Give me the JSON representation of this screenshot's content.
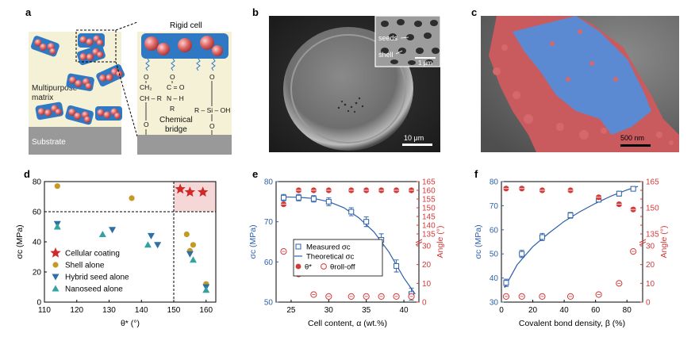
{
  "panels": {
    "a": {
      "label": "a",
      "texts": {
        "rigid_cell": "Rigid cell",
        "matrix": [
          "Multipurpose",
          "matrix"
        ],
        "substrate": "Substrate",
        "bridge": [
          "Chemical",
          "bridge"
        ],
        "chem": {
          "ch2": "CH₂",
          "ch": "CH – R",
          "co": "C = O",
          "nh": "N – H",
          "r": "R",
          "o": "O",
          "si": "R – Si – OH"
        }
      }
    },
    "b": {
      "label": "b",
      "inset_labels": [
        "seeds",
        "shell"
      ],
      "inset_scale": "1 μm",
      "scale": "10 μm"
    },
    "c": {
      "label": "c",
      "scale": "500 nm",
      "colors": {
        "red": "#d05a5e",
        "blue": "#5b8ad2"
      }
    },
    "d": {
      "label": "d"
    },
    "e": {
      "label": "e"
    },
    "f": {
      "label": "f"
    }
  },
  "chart_data": [
    {
      "panel": "d",
      "type": "scatter",
      "xlabel": "θ* (°)",
      "ylabel": "σc (MPa)",
      "xlim": [
        110,
        163
      ],
      "ylim": [
        0,
        80
      ],
      "xticks": [
        "110",
        "120",
        "130",
        "140",
        "150",
        "160"
      ],
      "yticks": [
        "0",
        "20",
        "40",
        "60",
        "80"
      ],
      "threshold_lines": {
        "x": 150,
        "y": 60
      },
      "shaded_region": {
        "x": [
          150,
          163
        ],
        "y": [
          60,
          80
        ]
      },
      "legend_placement": "bottom-left",
      "series": [
        {
          "name": "Cellular coating",
          "marker": "star",
          "color": "#cf2a2a",
          "points": [
            [
              152,
              75
            ],
            [
              155,
              73
            ],
            [
              159,
              73
            ]
          ]
        },
        {
          "name": "Shell alone",
          "marker": "circle",
          "color": "#c49a24",
          "points": [
            [
              114,
              77
            ],
            [
              137,
              69
            ],
            [
              154,
              45
            ],
            [
              156,
              38
            ],
            [
              155,
              34
            ],
            [
              160,
              12
            ]
          ]
        },
        {
          "name": "Hybrid seed alone",
          "marker": "triangle-down",
          "color": "#2f6fa3",
          "points": [
            [
              114,
              52
            ],
            [
              131,
              48
            ],
            [
              143,
              44
            ],
            [
              145,
              38
            ],
            [
              155,
              32
            ],
            [
              160,
              10
            ]
          ]
        },
        {
          "name": "Nanoseed alone",
          "marker": "triangle-up",
          "color": "#33a3a0",
          "points": [
            [
              114,
              50
            ],
            [
              128,
              45
            ],
            [
              142,
              38
            ],
            [
              156,
              28
            ],
            [
              160,
              8
            ]
          ]
        }
      ]
    },
    {
      "panel": "e",
      "type": "line",
      "xlabel": "Cell content, α (wt.%)",
      "ylabel_left": "σc (MPa)",
      "ylabel_right": "Angle (°)",
      "xlim": [
        23,
        42
      ],
      "xticks": [
        "25",
        "30",
        "35",
        "40"
      ],
      "left_ylim": [
        50,
        80
      ],
      "left_yticks": [
        "50",
        "60",
        "70",
        "80"
      ],
      "right_yticks": [
        "0",
        "10",
        "20",
        "30",
        "135",
        "140",
        "145",
        "150",
        "155",
        "160",
        "165"
      ],
      "legend_placement": "bottom-left",
      "legend": [
        "Measured σc",
        "Theoretical σc",
        "θ*",
        "θroll-off"
      ],
      "measured": {
        "x": [
          24,
          26,
          28,
          30,
          33,
          35,
          37,
          39,
          41
        ],
        "y": [
          76,
          76,
          75.7,
          75,
          72.5,
          70,
          65.5,
          59,
          52
        ],
        "err": [
          0.8,
          0.8,
          0.8,
          1,
          1,
          1.2,
          1.5,
          1.5,
          1.5
        ]
      },
      "theoretical": {
        "x": [
          24,
          26,
          28,
          30,
          32,
          34,
          36,
          38,
          40,
          41.5
        ],
        "y": [
          76.2,
          76.1,
          75.8,
          75,
          73.5,
          71,
          67.5,
          62.5,
          56,
          52
        ]
      },
      "theta_star": {
        "x": [
          24,
          26,
          28,
          30,
          33,
          35,
          37,
          39,
          41
        ],
        "y": [
          152,
          160,
          160,
          160,
          160,
          160,
          160,
          160,
          160
        ]
      },
      "theta_rolloff": {
        "x": [
          24,
          26,
          28,
          30,
          33,
          35,
          37,
          39,
          41
        ],
        "y": [
          27,
          15,
          4,
          3,
          3,
          3,
          3,
          3,
          3
        ]
      }
    },
    {
      "panel": "f",
      "type": "line",
      "xlabel": "Covalent bond density, β (%)",
      "ylabel_left": "σc (MPa)",
      "ylabel_right": "Angle (°)",
      "xlim": [
        0,
        90
      ],
      "xticks": [
        "0",
        "20",
        "40",
        "60",
        "80"
      ],
      "left_ylim": [
        30,
        80
      ],
      "left_yticks": [
        "30",
        "40",
        "50",
        "60",
        "70",
        "80"
      ],
      "right_yticks": [
        "0",
        "10",
        "20",
        "30",
        "135",
        "140",
        "145",
        "150",
        "155",
        "160",
        "165"
      ],
      "measured": {
        "x": [
          3,
          13,
          26,
          44,
          62,
          75,
          84
        ],
        "y": [
          38,
          50,
          57,
          66,
          72.5,
          75,
          77
        ],
        "err": [
          1.5,
          1.5,
          1.5,
          1.2,
          1,
          1,
          0.8
        ]
      },
      "theoretical": {
        "x": [
          2,
          10,
          20,
          30,
          40,
          50,
          60,
          70,
          80,
          87
        ],
        "y": [
          36,
          45.5,
          53,
          58.5,
          63.5,
          67.5,
          71,
          74,
          76.5,
          78
        ]
      },
      "theta_star": {
        "x": [
          3,
          13,
          26,
          44,
          62,
          75,
          84
        ],
        "y": [
          161,
          161,
          160,
          160,
          156,
          152,
          149
        ]
      },
      "theta_rolloff": {
        "x": [
          3,
          13,
          26,
          44,
          62,
          75,
          84
        ],
        "y": [
          3,
          3,
          3,
          3,
          4,
          10,
          27
        ]
      }
    }
  ]
}
